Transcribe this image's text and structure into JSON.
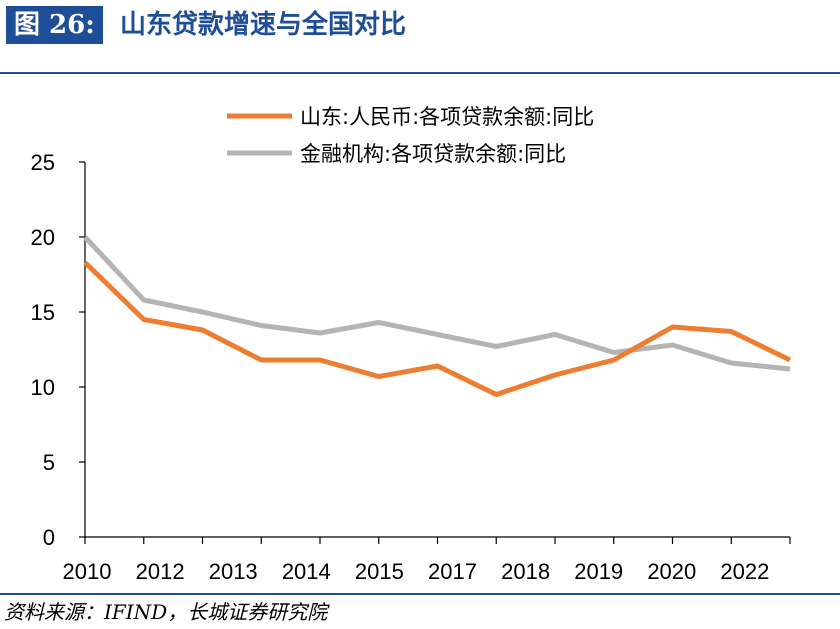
{
  "header": {
    "figure_label": "图 26:",
    "title": "山东贷款增速与全国对比"
  },
  "source": "资料来源：IFIND，长城证券研究院",
  "colors": {
    "brand": "#1f4e99",
    "series_shandong": "#ed7d31",
    "series_national": "#b4b4b4"
  },
  "chart_data": {
    "type": "line",
    "title": "",
    "xlabel": "",
    "ylabel": "",
    "ylim": [
      0,
      25
    ],
    "yticks": [
      0,
      5,
      10,
      15,
      20,
      25
    ],
    "x_tick_labels": [
      "2010",
      "2012",
      "2013",
      "2014",
      "2015",
      "2017",
      "2018",
      "2019",
      "2020",
      "2022"
    ],
    "grid": false,
    "legend_position": "top-center",
    "series": [
      {
        "name": "山东:人民币:各项贷款余额:同比",
        "color": "#ed7d31",
        "values": [
          18.3,
          14.5,
          13.8,
          11.8,
          11.8,
          10.7,
          11.4,
          9.5,
          10.8,
          11.8,
          14.0,
          13.7,
          11.8
        ]
      },
      {
        "name": "金融机构:各项贷款余额:同比",
        "color": "#b4b4b4",
        "values": [
          20.0,
          15.8,
          15.0,
          14.1,
          13.6,
          14.3,
          13.5,
          12.7,
          13.5,
          12.3,
          12.8,
          11.6,
          11.2
        ]
      }
    ]
  }
}
